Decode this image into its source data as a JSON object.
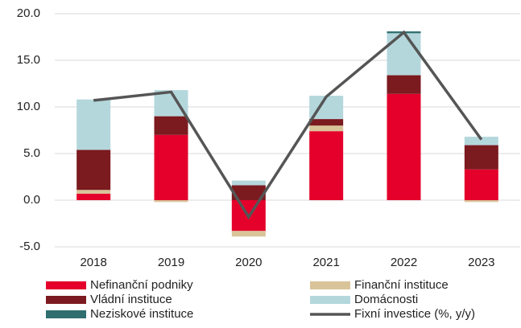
{
  "chart_data": {
    "type": "stacked-bar-line",
    "categories": [
      "2018",
      "2019",
      "2020",
      "2021",
      "2022",
      "2023"
    ],
    "series": [
      {
        "name": "Nefinanční podniky",
        "color": "#e4002b",
        "values": [
          0.7,
          7.0,
          -3.3,
          7.4,
          11.4,
          3.3
        ]
      },
      {
        "name": "Finanční instituce",
        "color": "#d9c49a",
        "values": [
          0.4,
          -0.2,
          -0.6,
          0.6,
          0,
          -0.2
        ]
      },
      {
        "name": "Vládní instituce",
        "color": "#7b1a1f",
        "values": [
          4.3,
          2.0,
          1.6,
          0.7,
          2.0,
          2.6
        ]
      },
      {
        "name": "Domácnosti",
        "color": "#b4d7dc",
        "values": [
          5.4,
          2.8,
          0.5,
          2.5,
          4.5,
          0.9
        ]
      },
      {
        "name": "Neziskové instituce",
        "color": "#2f6f6f",
        "values": [
          0,
          0,
          0,
          0,
          0.2,
          0
        ]
      },
      {
        "name": "Fixní investice (%, y/y)",
        "color": "#555555",
        "type": "line",
        "values": [
          10.7,
          11.6,
          -1.8,
          11.1,
          18.0,
          6.5
        ]
      }
    ],
    "ylim": [
      -5,
      20
    ],
    "yticks": [
      {
        "value": -5,
        "label": "-5.0"
      },
      {
        "value": 0,
        "label": "0.0"
      },
      {
        "value": 5,
        "label": "5.0"
      },
      {
        "value": 10,
        "label": "10.0"
      },
      {
        "value": 15,
        "label": "15.0"
      },
      {
        "value": 20,
        "label": "20.0"
      }
    ],
    "grid": true
  }
}
